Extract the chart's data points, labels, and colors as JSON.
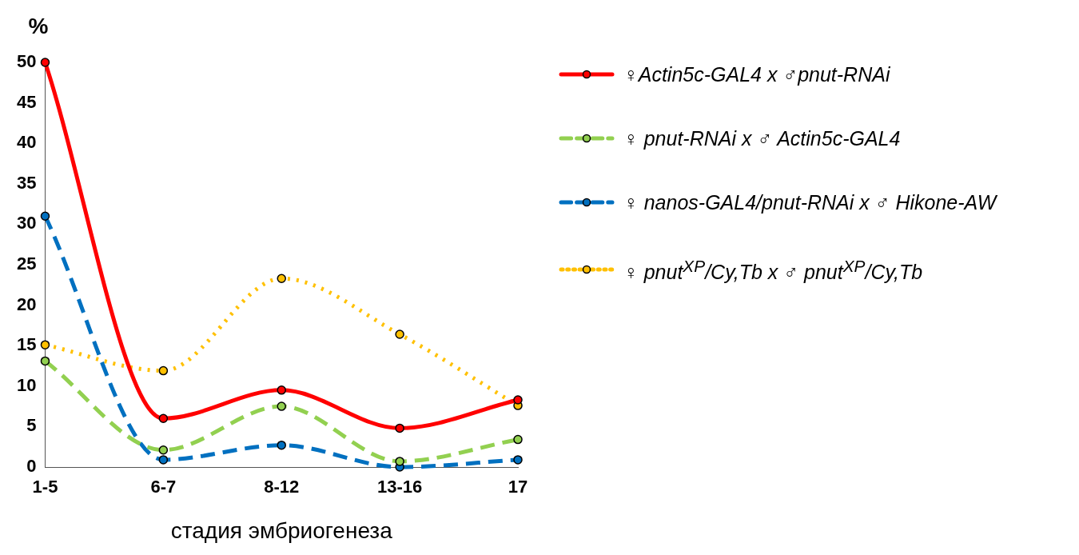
{
  "chart_data": {
    "type": "line",
    "ylabel": "%",
    "xlabel": "стадия эмбриогенеза",
    "categories": [
      "1-5",
      "6-7",
      "8-12",
      "13-16",
      "17"
    ],
    "ylim": [
      0,
      50
    ],
    "yticks": [
      0,
      5,
      10,
      15,
      20,
      25,
      30,
      35,
      40,
      45,
      50
    ],
    "grid": false,
    "legend": "right",
    "marker": "circle",
    "series": [
      {
        "name": "♀Actin5c-GAL4 x ♂pnut-RNAi",
        "color": "#ff0000",
        "line_style": "solid",
        "values": [
          50,
          6,
          9.5,
          4.8,
          8.3
        ]
      },
      {
        "name": "♀ pnut-RNAi x ♂ Actin5c-GAL4",
        "color": "#92d050",
        "line_style": "dashed",
        "values": [
          13.1,
          2.1,
          7.5,
          0.7,
          3.4
        ]
      },
      {
        "name": "♀ nanos-GAL4/pnut-RNAi x ♂ Hikone-AW",
        "color": "#0070c0",
        "line_style": "dashed",
        "values": [
          31,
          0.9,
          2.7,
          0,
          0.9
        ]
      },
      {
        "name": "♀ pnut$^{XP}$/Cy,Tb x ♂ pnut$^{XP}$/Cy,Tb",
        "color": "#ffc000",
        "line_style": "dotted",
        "values": [
          15.1,
          11.9,
          23.3,
          16.4,
          7.6
        ]
      }
    ]
  }
}
